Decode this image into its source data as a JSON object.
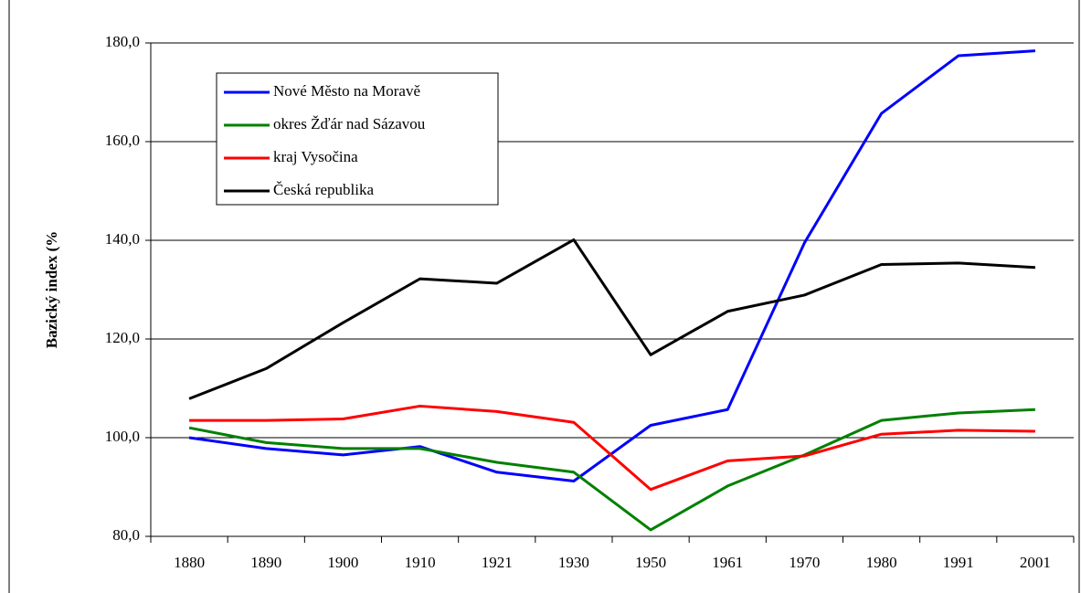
{
  "chart_data": {
    "type": "line",
    "y_label": "Bazický index (%",
    "categories": [
      "1880",
      "1890",
      "1900",
      "1910",
      "1921",
      "1930",
      "1950",
      "1961",
      "1970",
      "1980",
      "1991",
      "2001"
    ],
    "series": [
      {
        "name": "Nové Město na Moravě",
        "color": "#0000ff",
        "values": [
          100.0,
          97.8,
          96.5,
          98.2,
          93.0,
          91.2,
          102.5,
          105.7,
          139.5,
          165.7,
          177.4,
          178.4
        ]
      },
      {
        "name": "okres Žďár nad Sázavou",
        "color": "#008000",
        "values": [
          102.0,
          99.0,
          97.8,
          97.8,
          95.0,
          93.0,
          81.3,
          90.2,
          96.5,
          103.5,
          105.0,
          105.7
        ]
      },
      {
        "name": "kraj Vysočina",
        "color": "#ff0000",
        "values": [
          103.5,
          103.5,
          103.8,
          106.4,
          105.3,
          103.1,
          89.5,
          95.3,
          96.3,
          100.7,
          101.5,
          101.3
        ]
      },
      {
        "name": "Česká republika",
        "color": "#000000",
        "values": [
          107.9,
          114.0,
          123.3,
          132.2,
          131.3,
          140.1,
          116.8,
          125.6,
          128.9,
          135.1,
          135.4,
          134.5
        ]
      }
    ],
    "ylim": [
      80,
      180
    ],
    "yticks": [
      {
        "value": 80,
        "label": "80,0"
      },
      {
        "value": 100,
        "label": "100,0"
      },
      {
        "value": 120,
        "label": "120,0"
      },
      {
        "value": 140,
        "label": "140,0"
      },
      {
        "value": 160,
        "label": "160,0"
      },
      {
        "value": 180,
        "label": "180,0"
      }
    ],
    "grid": true,
    "legend": "upper left"
  }
}
